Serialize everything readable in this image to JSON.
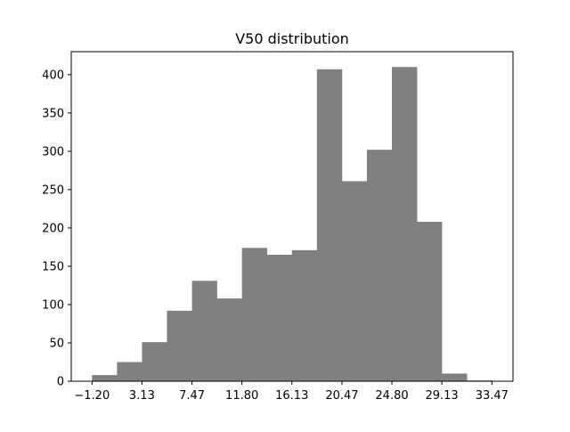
{
  "chart_data": {
    "type": "bar",
    "title": "V50 distribution",
    "xlabel": "",
    "ylabel": "",
    "bar_color": "#808080",
    "x_ticks": [
      "−1.20",
      "3.13",
      "7.47",
      "11.80",
      "16.13",
      "20.47",
      "24.80",
      "29.13",
      "33.47"
    ],
    "x_tick_values": [
      -1.2,
      3.13,
      7.47,
      11.8,
      16.13,
      20.47,
      24.8,
      29.13,
      33.47
    ],
    "y_ticks": [
      "0",
      "50",
      "100",
      "150",
      "200",
      "250",
      "300",
      "350",
      "400"
    ],
    "y_tick_values": [
      0,
      50,
      100,
      150,
      200,
      250,
      300,
      350,
      400
    ],
    "xlim": [
      -3.0,
      35.3
    ],
    "ylim": [
      0,
      430
    ],
    "bin_edges": [
      -1.2,
      0.967,
      3.13,
      5.3,
      7.47,
      9.63,
      11.8,
      13.97,
      16.13,
      18.3,
      20.47,
      22.63,
      24.8,
      26.97,
      29.13,
      31.3,
      33.47
    ],
    "values": [
      8,
      25,
      51,
      92,
      131,
      108,
      174,
      165,
      171,
      407,
      261,
      302,
      410,
      208,
      10,
      1
    ],
    "grid": false,
    "legend": "none"
  }
}
